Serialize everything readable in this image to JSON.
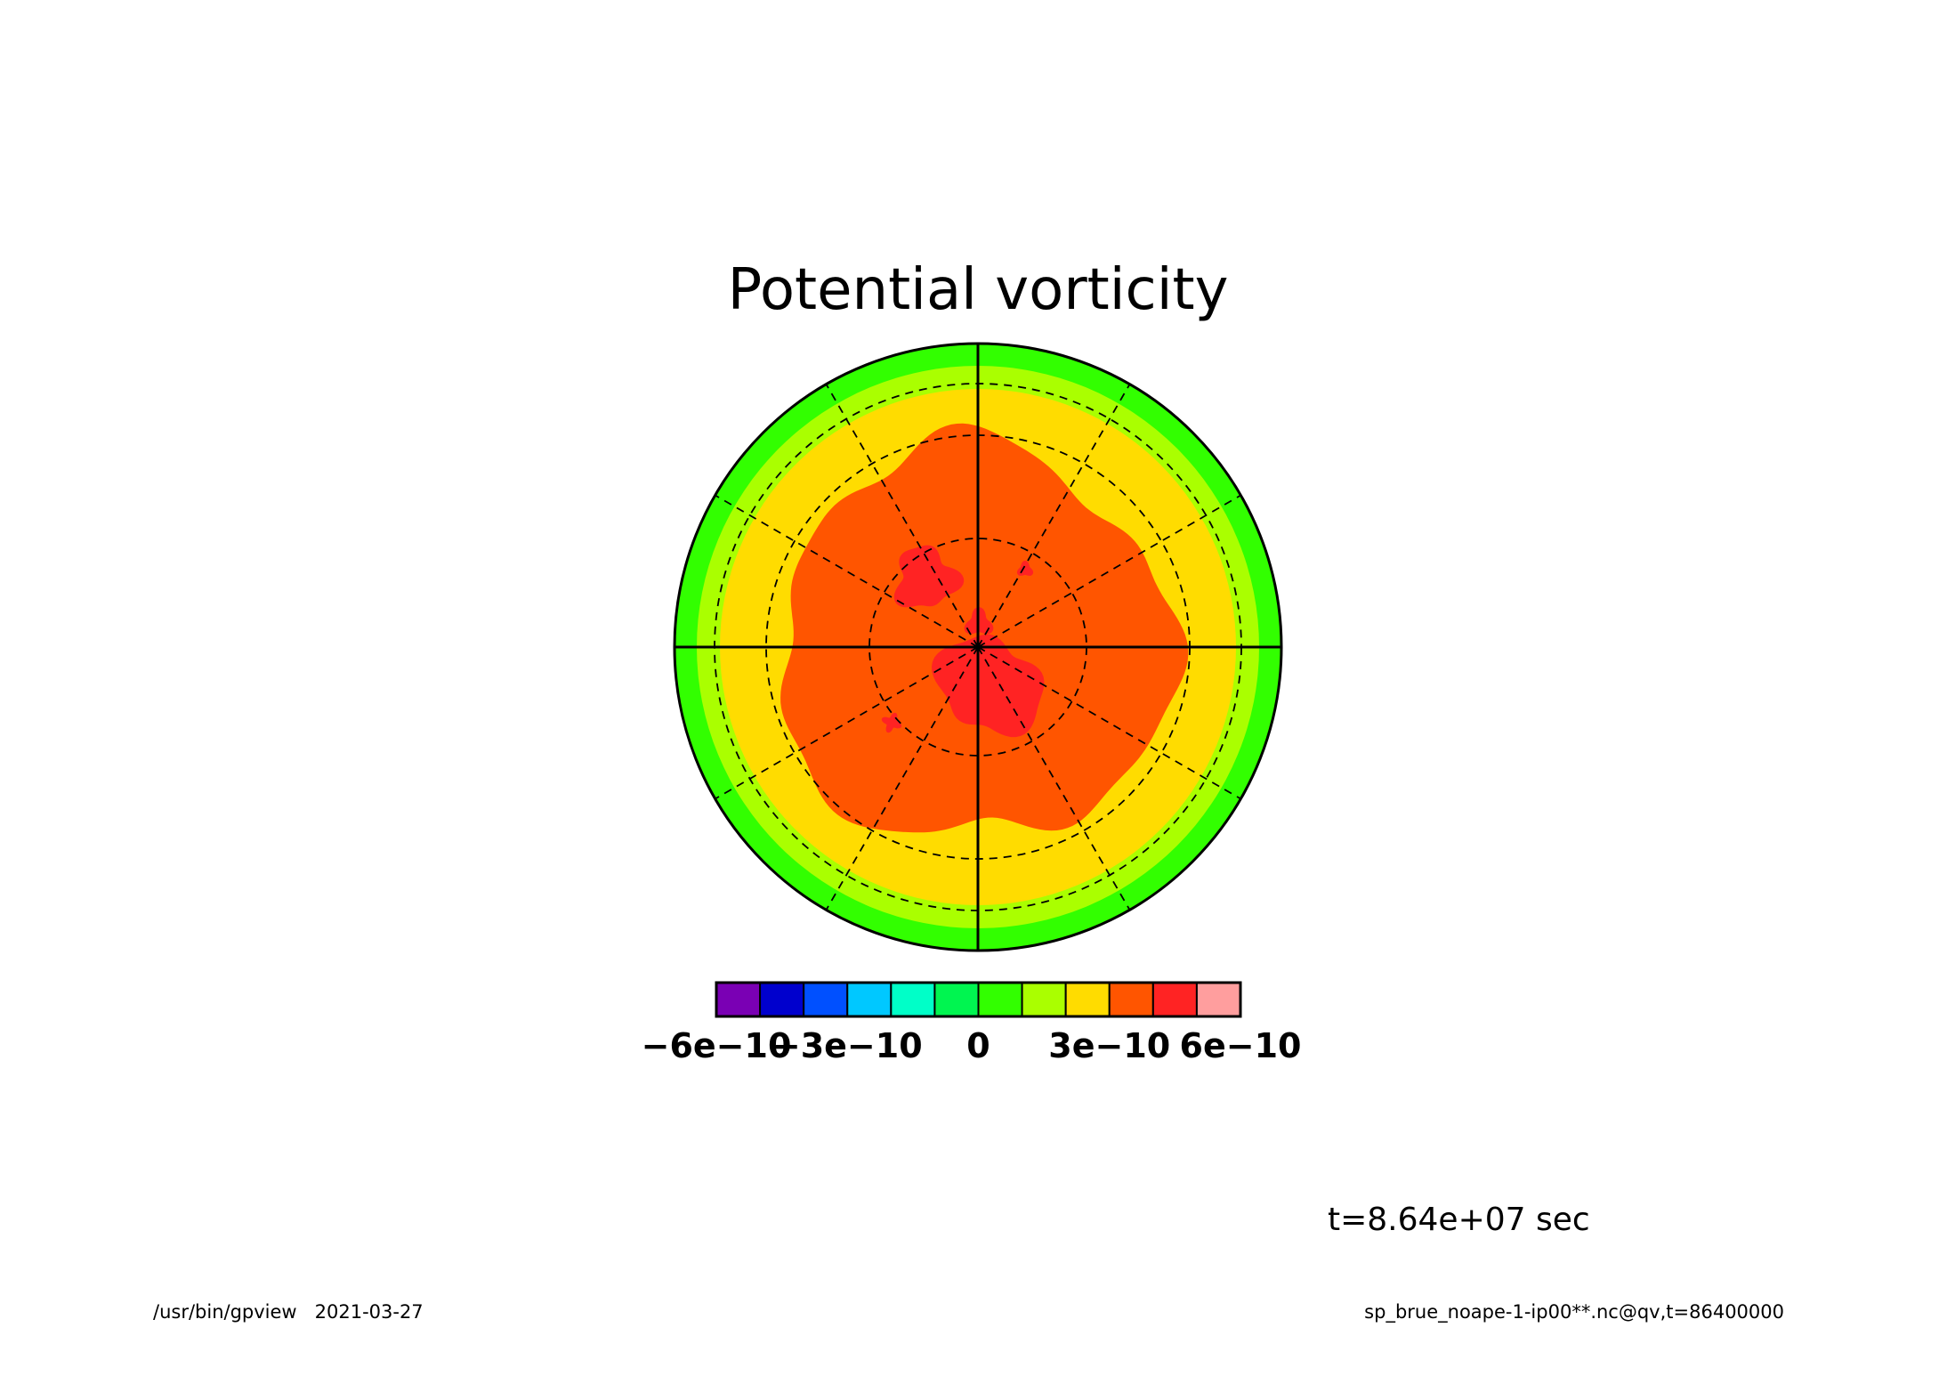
{
  "chart_data": {
    "type": "heatmap",
    "projection": "polar",
    "title": "Potential vorticity",
    "colorbar": {
      "colors": [
        "#7a00b4",
        "#0000cd",
        "#0050ff",
        "#00c8ff",
        "#00ffc8",
        "#00f550",
        "#32ff00",
        "#aaff00",
        "#ffdc00",
        "#ff5500",
        "#ff2323",
        "#ff9e9e"
      ],
      "tick_values": [
        -6e-10,
        -3e-10,
        0,
        3e-10,
        6e-10
      ],
      "tick_labels": [
        "−6e−10",
        "−3e−10",
        "0",
        "3e−10",
        "6e−10"
      ],
      "range": [
        -6e-10,
        6e-10
      ]
    },
    "field_levels": [
      {
        "band": "outer rim",
        "range": [
          0,
          1e-10
        ],
        "color": "#32ff00"
      },
      {
        "band": "outer ring",
        "range": [
          1e-10,
          2e-10
        ],
        "color": "#aaff00"
      },
      {
        "band": "mid region",
        "range": [
          2e-10,
          3e-10
        ],
        "color": "#ffdc00"
      },
      {
        "band": "inner region",
        "range": [
          3e-10,
          4e-10
        ],
        "color": "#ff5500"
      },
      {
        "band": "core patches",
        "range": [
          4e-10,
          5e-10
        ],
        "color": "#ff2323"
      }
    ],
    "grid": true,
    "grid_circles": 3,
    "grid_radials_deg": 30
  },
  "time_label": "t=8.64e+07 sec",
  "footer": {
    "left": "/usr/bin/gpview   2021-03-27",
    "right": "sp_brue_noape-1-ip00**.nc@qv,t=86400000"
  }
}
